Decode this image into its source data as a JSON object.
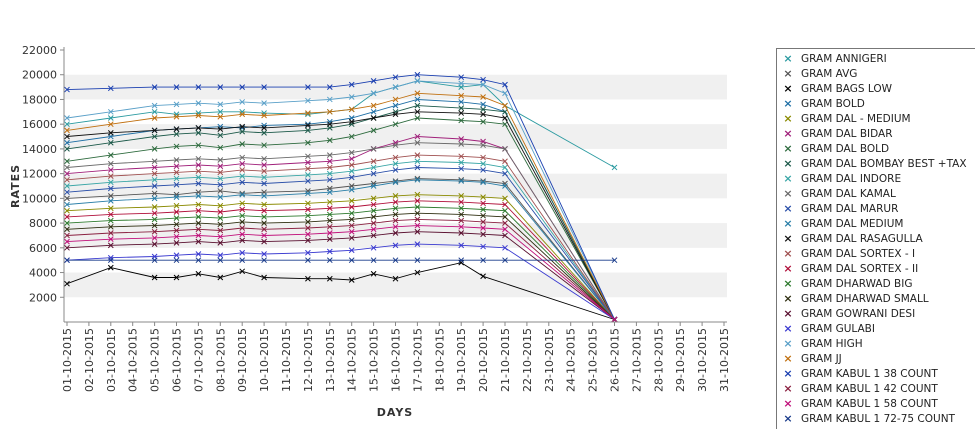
{
  "chart_data": {
    "type": "line",
    "xlabel": "DAYS",
    "ylabel": "RATES",
    "ylim": [
      0,
      22000
    ],
    "yticks": [
      2000,
      4000,
      6000,
      8000,
      10000,
      12000,
      14000,
      16000,
      18000,
      20000,
      22000
    ],
    "grid": "alternating horizontal bands",
    "legend_position": "right",
    "categories": [
      "01-10-2015",
      "02-10-2015",
      "03-10-2015",
      "04-10-2015",
      "05-10-2015",
      "06-10-2015",
      "07-10-2015",
      "08-10-2015",
      "09-10-2015",
      "10-10-2015",
      "11-10-2015",
      "12-10-2015",
      "13-10-2015",
      "14-10-2015",
      "15-10-2015",
      "16-10-2015",
      "17-10-2015",
      "18-10-2015",
      "19-10-2015",
      "20-10-2015",
      "21-10-2015",
      "22-10-2015",
      "23-10-2015",
      "24-10-2015",
      "25-10-2015",
      "26-10-2015",
      "27-10-2015",
      "28-10-2015",
      "29-10-2015",
      "30-10-2015",
      "31-10-2015"
    ],
    "series": [
      {
        "name": "GRAM ANNIGERI",
        "color": "#2b9aa0",
        "values": [
          16000,
          null,
          16500,
          null,
          17000,
          16800,
          16900,
          17000,
          17000,
          16900,
          null,
          16800,
          17000,
          17200,
          18500,
          19000,
          19500,
          null,
          19000,
          19200,
          17500,
          null,
          null,
          null,
          null,
          12500,
          null,
          null,
          null,
          null,
          null
        ]
      },
      {
        "name": "GRAM AVG",
        "color": "#555555",
        "values": [
          10000,
          null,
          10200,
          null,
          10400,
          10300,
          10500,
          10600,
          10400,
          10500,
          null,
          10600,
          10800,
          11000,
          11200,
          11400,
          11600,
          null,
          11500,
          11400,
          11200,
          null,
          null,
          null,
          null,
          200,
          null,
          null,
          null,
          null,
          null
        ]
      },
      {
        "name": "GRAM BAGS LOW",
        "color": "#000000",
        "values": [
          3100,
          null,
          4400,
          null,
          3600,
          3600,
          3900,
          3600,
          4100,
          3600,
          null,
          3500,
          3500,
          3400,
          3900,
          3500,
          4000,
          null,
          4800,
          3700,
          null,
          null,
          null,
          null,
          null,
          200,
          null,
          null,
          null,
          null,
          null
        ]
      },
      {
        "name": "GRAM BOLD",
        "color": "#1f6fa5",
        "values": [
          14500,
          null,
          15000,
          null,
          15500,
          15600,
          15700,
          15800,
          15700,
          15900,
          null,
          16000,
          16200,
          16500,
          17000,
          17500,
          18000,
          null,
          17800,
          17600,
          17000,
          null,
          null,
          null,
          null,
          200,
          null,
          null,
          null,
          null,
          null
        ]
      },
      {
        "name": "GRAM DAL - MEDIUM",
        "color": "#8a8a00",
        "values": [
          9000,
          null,
          9200,
          null,
          9300,
          9400,
          9500,
          9400,
          9600,
          9500,
          null,
          9600,
          9700,
          9800,
          10000,
          10200,
          10300,
          null,
          10200,
          10100,
          10000,
          null,
          null,
          null,
          null,
          200,
          null,
          null,
          null,
          null,
          null
        ]
      },
      {
        "name": "GRAM DAL BIDAR",
        "color": "#a0207a",
        "values": [
          12000,
          null,
          12300,
          null,
          12500,
          12600,
          12700,
          12600,
          12800,
          12700,
          null,
          12900,
          13000,
          13200,
          14000,
          14500,
          15000,
          null,
          14800,
          14600,
          14000,
          null,
          null,
          null,
          null,
          200,
          null,
          null,
          null,
          null,
          null
        ]
      },
      {
        "name": "GRAM DAL BOLD",
        "color": "#2e6b3e",
        "values": [
          13000,
          null,
          13500,
          null,
          14000,
          14200,
          14300,
          14100,
          14400,
          14300,
          null,
          14500,
          14700,
          15000,
          15500,
          16000,
          16500,
          null,
          16300,
          16200,
          16000,
          null,
          null,
          null,
          null,
          200,
          null,
          null,
          null,
          null,
          null
        ]
      },
      {
        "name": "GRAM DAL BOMBAY BEST +TAX",
        "color": "#1d5a4a",
        "values": [
          14000,
          null,
          14500,
          null,
          15000,
          15200,
          15300,
          15100,
          15400,
          15300,
          null,
          15500,
          15700,
          16000,
          16500,
          17000,
          17500,
          null,
          17300,
          17200,
          17000,
          null,
          null,
          null,
          null,
          200,
          null,
          null,
          null,
          null,
          null
        ]
      },
      {
        "name": "GRAM DAL INDORE",
        "color": "#3aa6a6",
        "values": [
          11000,
          null,
          11300,
          null,
          11500,
          11600,
          11700,
          11600,
          11800,
          11700,
          null,
          11900,
          12000,
          12200,
          12500,
          12800,
          13000,
          null,
          12900,
          12800,
          12500,
          null,
          null,
          null,
          null,
          200,
          null,
          null,
          null,
          null,
          null
        ]
      },
      {
        "name": "GRAM DAL KAMAL",
        "color": "#6a6a6a",
        "values": [
          12500,
          null,
          12800,
          null,
          13000,
          13100,
          13200,
          13100,
          13300,
          13200,
          null,
          13400,
          13500,
          13700,
          14000,
          14300,
          14500,
          null,
          14400,
          14300,
          14000,
          null,
          null,
          null,
          null,
          200,
          null,
          null,
          null,
          null,
          null
        ]
      },
      {
        "name": "GRAM DAL MARUR",
        "color": "#2a4fa8",
        "values": [
          10500,
          null,
          10800,
          null,
          11000,
          11100,
          11200,
          11100,
          11300,
          11200,
          null,
          11400,
          11500,
          11700,
          12000,
          12300,
          12500,
          null,
          12400,
          12300,
          12000,
          null,
          null,
          null,
          null,
          200,
          null,
          null,
          null,
          null,
          null
        ]
      },
      {
        "name": "GRAM DAL MEDIUM",
        "color": "#2a7fa8",
        "values": [
          9500,
          null,
          9800,
          null,
          10000,
          10100,
          10200,
          10100,
          10300,
          10200,
          null,
          10400,
          10500,
          10700,
          11000,
          11300,
          11500,
          null,
          11400,
          11300,
          11000,
          null,
          null,
          null,
          null,
          200,
          null,
          null,
          null,
          null,
          null
        ]
      },
      {
        "name": "GRAM DAL RASAGULLA",
        "color": "#111111",
        "values": [
          15000,
          null,
          15300,
          null,
          15500,
          15600,
          15700,
          15600,
          15800,
          15700,
          null,
          15900,
          16000,
          16200,
          16500,
          16800,
          17000,
          null,
          16900,
          16800,
          16500,
          null,
          null,
          null,
          null,
          200,
          null,
          null,
          null,
          null,
          null
        ]
      },
      {
        "name": "GRAM DAL SORTEX  - I",
        "color": "#a05050",
        "values": [
          11500,
          null,
          11800,
          null,
          12000,
          12100,
          12200,
          12100,
          12300,
          12200,
          null,
          12400,
          12500,
          12700,
          13000,
          13300,
          13500,
          null,
          13400,
          13300,
          13000,
          null,
          null,
          null,
          null,
          200,
          null,
          null,
          null,
          null,
          null
        ]
      },
      {
        "name": "GRAM DAL SORTEX - II",
        "color": "#b0103a",
        "values": [
          8500,
          null,
          8700,
          null,
          8800,
          8900,
          9000,
          8900,
          9100,
          9000,
          null,
          9100,
          9200,
          9300,
          9500,
          9700,
          9800,
          null,
          9700,
          9600,
          9500,
          null,
          null,
          null,
          null,
          200,
          null,
          null,
          null,
          null,
          null
        ]
      },
      {
        "name": "GRAM DHARWAD BIG",
        "color": "#2d7a2d",
        "values": [
          8000,
          null,
          8200,
          null,
          8300,
          8400,
          8500,
          8400,
          8600,
          8500,
          null,
          8600,
          8700,
          8800,
          9000,
          9200,
          9300,
          null,
          9200,
          9100,
          9000,
          null,
          null,
          null,
          null,
          200,
          null,
          null,
          null,
          null,
          null
        ]
      },
      {
        "name": "GRAM DHARWAD SMALL",
        "color": "#2e2e10",
        "values": [
          7500,
          null,
          7700,
          null,
          7800,
          7900,
          8000,
          7900,
          8100,
          8000,
          null,
          8100,
          8200,
          8300,
          8500,
          8700,
          8800,
          null,
          8700,
          8600,
          8500,
          null,
          null,
          null,
          null,
          200,
          null,
          null,
          null,
          null,
          null
        ]
      },
      {
        "name": "GRAM GOWRANI DESI",
        "color": "#5a1030",
        "values": [
          6000,
          null,
          6200,
          null,
          6300,
          6400,
          6500,
          6400,
          6600,
          6500,
          null,
          6600,
          6700,
          6800,
          7000,
          7200,
          7300,
          null,
          7200,
          7100,
          7000,
          null,
          null,
          null,
          null,
          200,
          null,
          null,
          null,
          null,
          null
        ]
      },
      {
        "name": "GRAM GULABI",
        "color": "#3a3ad0",
        "values": [
          5000,
          null,
          5200,
          null,
          5300,
          5400,
          5500,
          5400,
          5600,
          5500,
          null,
          5600,
          5700,
          5800,
          6000,
          6200,
          6300,
          null,
          6200,
          6100,
          6000,
          null,
          null,
          null,
          null,
          200,
          null,
          null,
          null,
          null,
          null
        ]
      },
      {
        "name": "GRAM HIGH",
        "color": "#5aa0c8",
        "values": [
          16500,
          null,
          17000,
          null,
          17500,
          17600,
          17700,
          17600,
          17800,
          17700,
          null,
          17900,
          18000,
          18200,
          18500,
          19000,
          19500,
          null,
          19300,
          19200,
          18500,
          null,
          null,
          null,
          null,
          200,
          null,
          null,
          null,
          null,
          null
        ]
      },
      {
        "name": "GRAM JJ",
        "color": "#c07010",
        "values": [
          15500,
          null,
          16000,
          null,
          16500,
          16600,
          16700,
          16600,
          16800,
          16700,
          null,
          16900,
          17000,
          17200,
          17500,
          18000,
          18500,
          null,
          18300,
          18200,
          17500,
          null,
          null,
          null,
          null,
          200,
          null,
          null,
          null,
          null,
          null
        ]
      },
      {
        "name": "GRAM KABUL 1 38 COUNT",
        "color": "#1a3fb0",
        "values": [
          18800,
          null,
          18900,
          null,
          19000,
          19000,
          19000,
          19000,
          19000,
          19000,
          null,
          19000,
          19000,
          19200,
          19500,
          19800,
          20000,
          null,
          19800,
          19600,
          19200,
          null,
          null,
          null,
          null,
          200,
          null,
          null,
          null,
          null,
          null
        ]
      },
      {
        "name": "GRAM KABUL 1 42 COUNT",
        "color": "#8a2040",
        "values": [
          7000,
          null,
          7200,
          null,
          7300,
          7400,
          7500,
          7400,
          7600,
          7500,
          null,
          7600,
          7700,
          7800,
          8000,
          8200,
          8300,
          null,
          8200,
          8100,
          8000,
          null,
          null,
          null,
          null,
          200,
          null,
          null,
          null,
          null,
          null
        ]
      },
      {
        "name": "GRAM KABUL 1 58 COUNT",
        "color": "#c0107a",
        "values": [
          6500,
          null,
          6700,
          null,
          6800,
          6900,
          7000,
          6900,
          7100,
          7000,
          null,
          7100,
          7200,
          7300,
          7500,
          7700,
          7800,
          null,
          7700,
          7600,
          7500,
          null,
          null,
          null,
          null,
          200,
          null,
          null,
          null,
          null,
          null
        ]
      },
      {
        "name": "GRAM KABUL 1 72-75 COUNT",
        "color": "#183a8a",
        "values": [
          5000,
          null,
          5000,
          null,
          5000,
          5000,
          5000,
          5000,
          5000,
          5000,
          null,
          5000,
          5000,
          5000,
          5000,
          5000,
          5000,
          null,
          5000,
          5000,
          5000,
          null,
          null,
          null,
          null,
          5000,
          null,
          null,
          null,
          null,
          null
        ]
      }
    ]
  }
}
